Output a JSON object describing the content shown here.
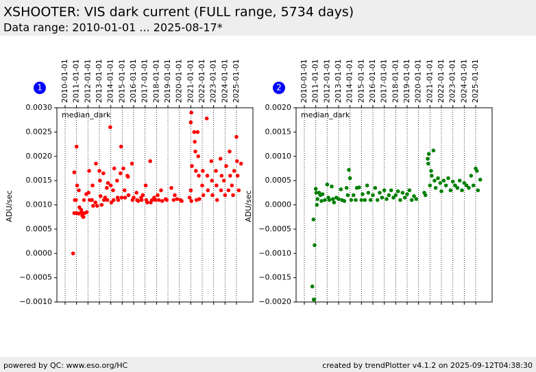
{
  "page": {
    "title": "XSHOOTER: VIS dark current (FULL range, 5734 days)",
    "subtitle": "Data range: 2010-01-01 ... 2025-08-17*",
    "footer_left": "powered by QC: www.eso.org/HC",
    "footer_right": "created by trendPlotter v4.1.2 on 2025-09-12T04:38:30"
  },
  "chart_data": [
    {
      "type": "scatter",
      "panel": "1",
      "ylabel": "ADU/sec",
      "xgrid": true,
      "xlim": [
        2009.28,
        2026.44
      ],
      "xticks": [
        {
          "value": 2010,
          "label": "2010-01-01"
        },
        {
          "value": 2011,
          "label": "2011-01-01"
        },
        {
          "value": 2012,
          "label": "2012-01-01"
        },
        {
          "value": 2013,
          "label": "2013-01-01"
        },
        {
          "value": 2014,
          "label": "2014-01-01"
        },
        {
          "value": 2015,
          "label": "2015-01-01"
        },
        {
          "value": 2016,
          "label": "2016-01-01"
        },
        {
          "value": 2017,
          "label": "2017-01-01"
        },
        {
          "value": 2018,
          "label": "2018-01-01"
        },
        {
          "value": 2019,
          "label": "2019-01-01"
        },
        {
          "value": 2020,
          "label": "2020-01-01"
        },
        {
          "value": 2021,
          "label": "2021-01-01"
        },
        {
          "value": 2022,
          "label": "2022-01-01"
        },
        {
          "value": 2023,
          "label": "2023-01-01"
        },
        {
          "value": 2024,
          "label": "2024-01-01"
        },
        {
          "value": 2025,
          "label": "2025-01-01"
        }
      ],
      "ylim": [
        -0.001,
        0.003
      ],
      "yticks": [
        {
          "value": -0.001,
          "label": "−0.0010"
        },
        {
          "value": -0.0005,
          "label": "−0.0005"
        },
        {
          "value": 0,
          "label": "0.0000"
        },
        {
          "value": 0.0005,
          "label": "0.0005"
        },
        {
          "value": 0.001,
          "label": "0.0010"
        },
        {
          "value": 0.0015,
          "label": "0.0015"
        },
        {
          "value": 0.002,
          "label": "0.0020"
        },
        {
          "value": 0.0025,
          "label": "0.0025"
        },
        {
          "value": 0.003,
          "label": "0.0030"
        }
      ],
      "x": [
        2010.7,
        2010.8,
        2010.85,
        2010.8,
        2011.0,
        2011.05,
        2011.0,
        2010.95,
        2011.2,
        2011.25,
        2011.2,
        2011.4,
        2011.45,
        2011.5,
        2011.6,
        2011.7,
        2011.65,
        2011.85,
        2011.9,
        2012.1,
        2012.15,
        2012.05,
        2012.4,
        2012.35,
        2012.45,
        2012.7,
        2012.65,
        2012.8,
        2013.0,
        2013.05,
        2013.1,
        2013.2,
        2013.35,
        2013.4,
        2013.5,
        2013.65,
        2013.7,
        2013.75,
        2013.95,
        2014.0,
        2014.05,
        2014.2,
        2014.25,
        2014.3,
        2014.55,
        2014.6,
        2014.65,
        2014.9,
        2014.85,
        2014.95,
        2015.1,
        2015.2,
        2015.25,
        2015.45,
        2015.5,
        2015.55,
        2015.85,
        2015.9,
        2016.0,
        2016.25,
        2016.3,
        2016.4,
        2016.65,
        2016.7,
        2016.8,
        2017.05,
        2017.1,
        2017.2,
        2017.45,
        2017.5,
        2017.6,
        2017.8,
        2017.9,
        2018.1,
        2018.2,
        2018.4,
        2018.5,
        2018.8,
        2018.9,
        2019.3,
        2019.5,
        2019.6,
        2019.8,
        2020.1,
        2020.2,
        2020.9,
        2021.0,
        2021.05,
        2021.1,
        2021.0,
        2021.05,
        2021.3,
        2021.35,
        2021.4,
        2021.45,
        2021.5,
        2021.6,
        2021.65,
        2021.7,
        2021.75,
        2022.0,
        2022.05,
        2022.1,
        2022.4,
        2022.45,
        2022.5,
        2022.8,
        2022.85,
        2022.9,
        2023.2,
        2023.25,
        2023.3,
        2023.6,
        2023.65,
        2023.7,
        2023.9,
        2024.0,
        2024.1,
        2024.3,
        2024.4,
        2024.45,
        2024.6,
        2024.7,
        2024.8,
        2025.0,
        2025.05,
        2025.1,
        2025.2,
        2025.4
      ],
      "series": [
        {
          "name": "median_dark",
          "color": "#ff0000",
          "values": [
            0,
            0.00167,
            0.0011,
            0.00083,
            0.0022,
            0.0014,
            0.00083,
            0.0011,
            0.0013,
            0.00095,
            0.00082,
            0.0009,
            0.00085,
            0.00078,
            0.00075,
            0.00083,
            0.0011,
            0.00122,
            0.00085,
            0.0017,
            0.0011,
            0.00125,
            0.0014,
            0.0011,
            0.00098,
            0.00185,
            0.00105,
            0.00098,
            0.0017,
            0.0015,
            0.00118,
            0.001,
            0.00165,
            0.0011,
            0.00115,
            0.00135,
            0.0011,
            0.00145,
            0.0026,
            0.0014,
            0.00105,
            0.0013,
            0.0011,
            0.00175,
            0.0015,
            0.00115,
            0.0011,
            0.0022,
            0.00165,
            0.00115,
            0.00175,
            0.0013,
            0.00115,
            0.0016,
            0.00158,
            0.0012,
            0.00185,
            0.0011,
            0.00115,
            0.00125,
            0.0011,
            0.00108,
            0.00115,
            0.0011,
            0.0012,
            0.0014,
            0.0011,
            0.00105,
            0.0019,
            0.00105,
            0.0011,
            0.00115,
            0.0011,
            0.0012,
            0.0011,
            0.0013,
            0.00108,
            0.00112,
            0.0011,
            0.00135,
            0.0011,
            0.0012,
            0.00112,
            0.0011,
            0.00108,
            0.00115,
            0.0027,
            0.0029,
            0.0018,
            0.0013,
            0.00108,
            0.0025,
            0.0023,
            0.0021,
            0.0017,
            0.0011,
            0.0025,
            0.002,
            0.0016,
            0.00112,
            0.0014,
            0.0017,
            0.0012,
            0.00278,
            0.0016,
            0.0013,
            0.0019,
            0.0015,
            0.0012,
            0.0017,
            0.0014,
            0.0011,
            0.00195,
            0.0013,
            0.0016,
            0.0015,
            0.0012,
            0.0018,
            0.0013,
            0.0021,
            0.0016,
            0.0014,
            0.0012,
            0.0017,
            0.0024,
            0.0019,
            0.0016,
            0.0013,
            0.00185
          ]
        }
      ]
    },
    {
      "type": "scatter",
      "panel": "2",
      "ylabel": "ADU/sec",
      "xgrid": true,
      "xlim": [
        2009.28,
        2026.44
      ],
      "xticks": [
        {
          "value": 2010,
          "label": "2010-01-01"
        },
        {
          "value": 2011,
          "label": "2011-01-01"
        },
        {
          "value": 2012,
          "label": "2012-01-01"
        },
        {
          "value": 2013,
          "label": "2013-01-01"
        },
        {
          "value": 2014,
          "label": "2014-01-01"
        },
        {
          "value": 2015,
          "label": "2015-01-01"
        },
        {
          "value": 2016,
          "label": "2016-01-01"
        },
        {
          "value": 2017,
          "label": "2017-01-01"
        },
        {
          "value": 2018,
          "label": "2018-01-01"
        },
        {
          "value": 2019,
          "label": "2019-01-01"
        },
        {
          "value": 2020,
          "label": "2020-01-01"
        },
        {
          "value": 2021,
          "label": "2021-01-01"
        },
        {
          "value": 2022,
          "label": "2022-01-01"
        },
        {
          "value": 2023,
          "label": "2023-01-01"
        },
        {
          "value": 2024,
          "label": "2024-01-01"
        },
        {
          "value": 2025,
          "label": "2025-01-01"
        }
      ],
      "ylim": [
        -0.002,
        0.002
      ],
      "yticks": [
        {
          "value": -0.002,
          "label": "−0.0020"
        },
        {
          "value": -0.0015,
          "label": "−0.0015"
        },
        {
          "value": -0.001,
          "label": "−0.0010"
        },
        {
          "value": -0.0005,
          "label": "−0.0005"
        },
        {
          "value": 0,
          "label": "0.0000"
        },
        {
          "value": 0.0005,
          "label": "0.0005"
        },
        {
          "value": 0.001,
          "label": "0.0010"
        },
        {
          "value": 0.0015,
          "label": "0.0015"
        },
        {
          "value": 0.002,
          "label": "0.0020"
        }
      ],
      "x": [
        2010.7,
        2010.8,
        2010.82,
        2010.87,
        2010.9,
        2011.0,
        2011.05,
        2011.1,
        2011.15,
        2011.3,
        2011.4,
        2011.5,
        2011.6,
        2011.8,
        2012.0,
        2012.1,
        2012.2,
        2012.4,
        2012.5,
        2012.6,
        2012.8,
        2013.0,
        2013.2,
        2013.3,
        2013.5,
        2013.7,
        2013.8,
        2013.9,
        2014.0,
        2014.1,
        2014.3,
        2014.5,
        2014.6,
        2014.8,
        2015.0,
        2015.1,
        2015.3,
        2015.5,
        2015.6,
        2015.8,
        2016.0,
        2016.2,
        2016.4,
        2016.6,
        2016.8,
        2017.0,
        2017.2,
        2017.4,
        2017.6,
        2017.8,
        2018.0,
        2018.2,
        2018.4,
        2018.6,
        2018.8,
        2019.0,
        2019.2,
        2019.4,
        2019.6,
        2019.8,
        2020.5,
        2020.6,
        2020.8,
        2020.85,
        2020.9,
        2021.0,
        2021.1,
        2021.15,
        2021.3,
        2021.4,
        2021.5,
        2021.7,
        2021.9,
        2022.0,
        2022.2,
        2022.4,
        2022.6,
        2022.8,
        2023.0,
        2023.2,
        2023.4,
        2023.6,
        2023.8,
        2024.0,
        2024.2,
        2024.4,
        2024.6,
        2024.8,
        2025.0,
        2025.1,
        2025.2,
        2025.4
      ],
      "series": [
        {
          "name": "median_dark",
          "color": "#008000",
          "values": [
            -0.00168,
            -0.0003,
            -0.00195,
            -0.00195,
            -0.00083,
            0.00033,
            0.00025,
            0,
            0.00012,
            0.00025,
            0.0002,
            8e-05,
            0.00022,
            0.0001,
            0.00042,
            0.00015,
            0.0001,
            0.00038,
            0.00012,
            5e-05,
            0.00015,
            0.00012,
            0.00032,
            0.0001,
            8e-05,
            0.00035,
            0.0002,
            0.00072,
            0.00055,
            0.0001,
            0.0002,
            0.0001,
            0.00035,
            0.00036,
            0.0001,
            0.00022,
            0.0001,
            0.0004,
            0.00025,
            0.0001,
            0.0002,
            0.00035,
            0.0001,
            0.00025,
            0.00015,
            0.0003,
            0.00012,
            0.0002,
            0.0003,
            0.00015,
            0.0002,
            0.00028,
            0.0001,
            0.00025,
            0.00015,
            0.00022,
            0.0003,
            0.0001,
            0.00018,
            0.00012,
            0.00025,
            0.0002,
            0.00095,
            0.00085,
            0.00105,
            0.0004,
            0.0007,
            0.0006,
            0.00112,
            0.0005,
            0.00035,
            0.00055,
            0.00045,
            0.00028,
            0.0005,
            0.0004,
            0.00055,
            0.0003,
            0.00048,
            0.0004,
            0.00035,
            0.0005,
            0.0003,
            0.00045,
            0.0004,
            0.00035,
            0.0006,
            0.0004,
            0.00075,
            0.0007,
            0.0003,
            0.00052
          ]
        }
      ]
    }
  ]
}
